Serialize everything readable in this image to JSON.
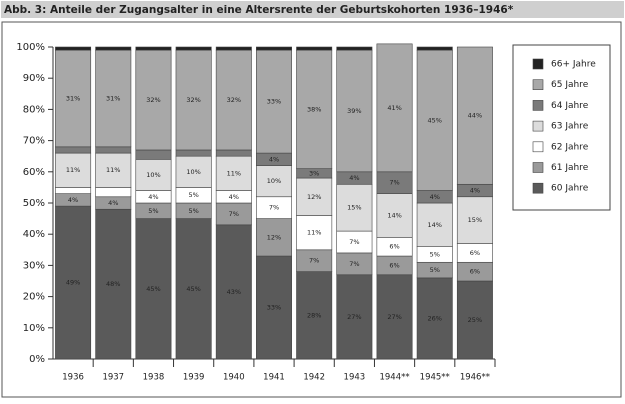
{
  "chart_data": {
    "type": "stacked-bar",
    "title": "Abb. 3: Anteile der Zugangsalter in eine Altersrente der Geburtskohorten 1936–1946*",
    "categories": [
      "1936",
      "1937",
      "1938",
      "1939",
      "1940",
      "1941",
      "1942",
      "1943",
      "1944**",
      "1945**",
      "1946**"
    ],
    "series": [
      {
        "name": "60 Jahre",
        "color": "#5a5a5a",
        "values": [
          49,
          48,
          45,
          45,
          43,
          33,
          28,
          27,
          27,
          26,
          25
        ],
        "value_labels": [
          "49%",
          "48%",
          "45%",
          "45%",
          "43%",
          "33%",
          "28%",
          "27%",
          "27%",
          "26%",
          "25%"
        ]
      },
      {
        "name": "61 Jahre",
        "color": "#9a9a9a",
        "values": [
          4,
          4,
          5,
          5,
          7,
          12,
          7,
          7,
          6,
          5,
          6
        ],
        "value_labels": [
          "4%",
          "4%",
          "5%",
          "5%",
          "7%",
          "12%",
          "7%",
          "7%",
          "6%",
          "5%",
          "6%"
        ]
      },
      {
        "name": "62 Jahre",
        "color": "#ffffff",
        "values": [
          2,
          3,
          4,
          5,
          4,
          7,
          11,
          7,
          6,
          5,
          6
        ],
        "value_labels": [
          null,
          null,
          "4%",
          "5%",
          "4%",
          "7%",
          "11%",
          "7%",
          "6%",
          "5%",
          "6%"
        ]
      },
      {
        "name": "63 Jahre",
        "color": "#dcdcdc",
        "values": [
          11,
          11,
          10,
          10,
          11,
          10,
          12,
          15,
          14,
          14,
          15
        ],
        "value_labels": [
          "11%",
          "11%",
          "10%",
          "10%",
          "11%",
          "10%",
          "12%",
          "15%",
          "14%",
          "14%",
          "15%"
        ]
      },
      {
        "name": "64 Jahre",
        "color": "#7a7a7a",
        "values": [
          2,
          2,
          3,
          2,
          2,
          4,
          3,
          4,
          7,
          4,
          4
        ],
        "value_labels": [
          null,
          null,
          null,
          null,
          null,
          "4%",
          "3%",
          "4%",
          "7%",
          "4%",
          "4%"
        ]
      },
      {
        "name": "65 Jahre",
        "color": "#a8a8a8",
        "values": [
          31,
          31,
          32,
          32,
          32,
          33,
          38,
          39,
          41,
          45,
          44
        ],
        "value_labels": [
          "31%",
          "31%",
          "32%",
          "32%",
          "32%",
          "33%",
          "38%",
          "39%",
          "41%",
          "45%",
          "44%"
        ]
      },
      {
        "name": "66+ Jahre",
        "color": "#222222",
        "values": [
          1,
          1,
          1,
          1,
          1,
          1,
          1,
          1,
          0,
          1,
          0
        ],
        "value_labels": [
          null,
          null,
          null,
          null,
          null,
          null,
          null,
          null,
          null,
          null,
          null
        ]
      }
    ],
    "ylim": [
      0,
      100
    ],
    "yticks": [
      {
        "value": 0,
        "label": "0%"
      },
      {
        "value": 10,
        "label": "10%"
      },
      {
        "value": 20,
        "label": "20%"
      },
      {
        "value": 30,
        "label": "30%"
      },
      {
        "value": 40,
        "label": "40%"
      },
      {
        "value": 50,
        "label": "50%"
      },
      {
        "value": 60,
        "label": "60%"
      },
      {
        "value": 70,
        "label": "70%"
      },
      {
        "value": 80,
        "label": "80%"
      },
      {
        "value": 90,
        "label": "90%"
      },
      {
        "value": 100,
        "label": "100%"
      }
    ],
    "legend": "right"
  }
}
